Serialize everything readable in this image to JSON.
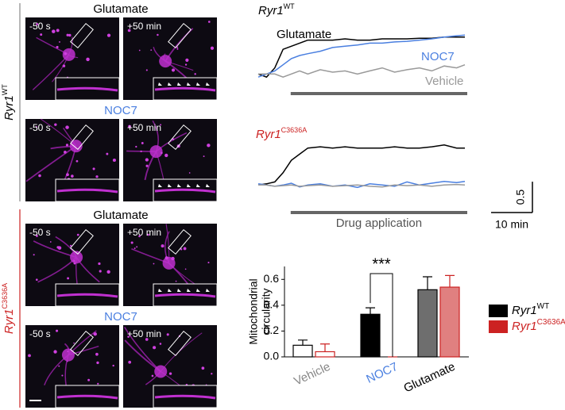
{
  "micrographs": [
    {
      "genotype": "Ryr1",
      "superscript": "WT",
      "color": "#000000",
      "line_color": "#888888",
      "rows": [
        {
          "treatment": "Glutamate",
          "color": "#000000",
          "times": [
            "-50 s",
            "+50 min"
          ]
        },
        {
          "treatment": "NOC7",
          "color": "#4a7fe0",
          "times": [
            "-50 s",
            "+50 min"
          ]
        }
      ]
    },
    {
      "genotype": "Ryr1",
      "superscript": "C3636A",
      "color": "#cc2222",
      "line_color": "#cc2222",
      "rows": [
        {
          "treatment": "Glutamate",
          "color": "#000000",
          "times": [
            "-50 s",
            "+50 min"
          ]
        },
        {
          "treatment": "NOC7",
          "color": "#4a7fe0",
          "times": [
            "-50 s",
            "+50 min"
          ]
        }
      ]
    }
  ],
  "chart_data": [
    {
      "type": "line",
      "title": "Ryr1",
      "title_superscript": "WT",
      "title_color": "#000000",
      "x": [
        0,
        2,
        4,
        6,
        8,
        10,
        12,
        15,
        18,
        21,
        24,
        27,
        30,
        33,
        36,
        39,
        42,
        45,
        48,
        50
      ],
      "xlim": [
        0,
        50
      ],
      "ylim": [
        -0.1,
        0.8
      ],
      "series": [
        {
          "name": "Glutamate",
          "color": "#000000",
          "values": [
            0.05,
            0.0,
            0.15,
            0.45,
            0.5,
            0.55,
            0.6,
            0.6,
            0.6,
            0.62,
            0.6,
            0.6,
            0.62,
            0.62,
            0.62,
            0.63,
            0.63,
            0.65,
            0.65,
            0.65
          ]
        },
        {
          "name": "NOC7",
          "color": "#4a7fe0",
          "values": [
            0.0,
            0.05,
            0.1,
            0.2,
            0.3,
            0.35,
            0.38,
            0.42,
            0.48,
            0.5,
            0.52,
            0.55,
            0.55,
            0.57,
            0.58,
            0.6,
            0.62,
            0.65,
            0.67,
            0.68
          ]
        },
        {
          "name": "Vehicle",
          "color": "#999999",
          "values": [
            0.05,
            0.05,
            0.05,
            0.0,
            0.05,
            0.1,
            0.05,
            0.12,
            0.08,
            0.1,
            0.05,
            0.1,
            0.15,
            0.08,
            0.12,
            0.15,
            0.1,
            0.18,
            0.15,
            0.2
          ]
        }
      ],
      "drug_application": {
        "start": 4,
        "end": 50
      }
    },
    {
      "type": "line",
      "title": "Ryr1",
      "title_superscript": "C3636A",
      "title_color": "#cc2222",
      "x": [
        0,
        2,
        4,
        6,
        8,
        10,
        12,
        15,
        18,
        21,
        24,
        27,
        30,
        33,
        36,
        39,
        42,
        45,
        48,
        50
      ],
      "xlim": [
        0,
        50
      ],
      "ylim": [
        -0.15,
        0.75
      ],
      "series": [
        {
          "color": "#000000",
          "values": [
            0.0,
            0.02,
            0.05,
            0.2,
            0.4,
            0.5,
            0.6,
            0.62,
            0.6,
            0.62,
            0.6,
            0.6,
            0.6,
            0.62,
            0.6,
            0.6,
            0.62,
            0.65,
            0.6,
            0.6
          ]
        },
        {
          "color": "#4a7fe0",
          "values": [
            0.02,
            0.0,
            -0.02,
            0.0,
            0.03,
            -0.03,
            0.0,
            0.02,
            -0.02,
            0.0,
            -0.04,
            0.02,
            0.0,
            -0.02,
            0.05,
            0.0,
            0.03,
            0.06,
            0.04,
            0.06
          ]
        },
        {
          "color": "#999999",
          "values": [
            0.0,
            0.0,
            -0.02,
            -0.01,
            0.0,
            -0.02,
            -0.01,
            0.0,
            -0.02,
            -0.01,
            0.0,
            -0.02,
            -0.03,
            0.0,
            -0.01,
            0.0,
            -0.02,
            0.0,
            0.01,
            0.0
          ]
        }
      ],
      "drug_application": {
        "start": 4,
        "end": 50,
        "label": "Drug application"
      },
      "scale_bar": {
        "x": 10,
        "x_label": "10 min",
        "y": 0.5,
        "y_label": "0.5"
      }
    },
    {
      "type": "bar",
      "ylabel": [
        "Mitochondrial",
        "circularity"
      ],
      "categories": [
        "Vehicle",
        "NOC7",
        "Glutamate"
      ],
      "category_colors": [
        "#888888",
        "#4a7fe0",
        "#000000"
      ],
      "ylim": [
        0,
        0.7
      ],
      "yticks": [
        {
          "value": 0,
          "label": "0.0"
        },
        0.2,
        0.4,
        0.6
      ],
      "series": [
        {
          "name": "Ryr1",
          "name_superscript": "WT",
          "color": "#000000",
          "name_color": "#000000",
          "bar_colors": [
            "#ffffff",
            "#000000",
            "#6e6e6e"
          ],
          "edge_color": "#000000",
          "values": [
            0.09,
            0.33,
            0.52
          ],
          "errors": [
            0.04,
            0.05,
            0.1
          ]
        },
        {
          "name": "Ryr1",
          "name_superscript": "C3636A",
          "color": "#cc2222",
          "name_color": "#cc2222",
          "bar_colors": [
            "#ffffff",
            "#ffffff",
            "#e08080"
          ],
          "edge_color": "#cc2222",
          "values": [
            0.04,
            0.0,
            0.54
          ],
          "errors": [
            0.06,
            0.0,
            0.09
          ]
        }
      ],
      "annotation": {
        "label": "***",
        "category": 1
      }
    }
  ]
}
